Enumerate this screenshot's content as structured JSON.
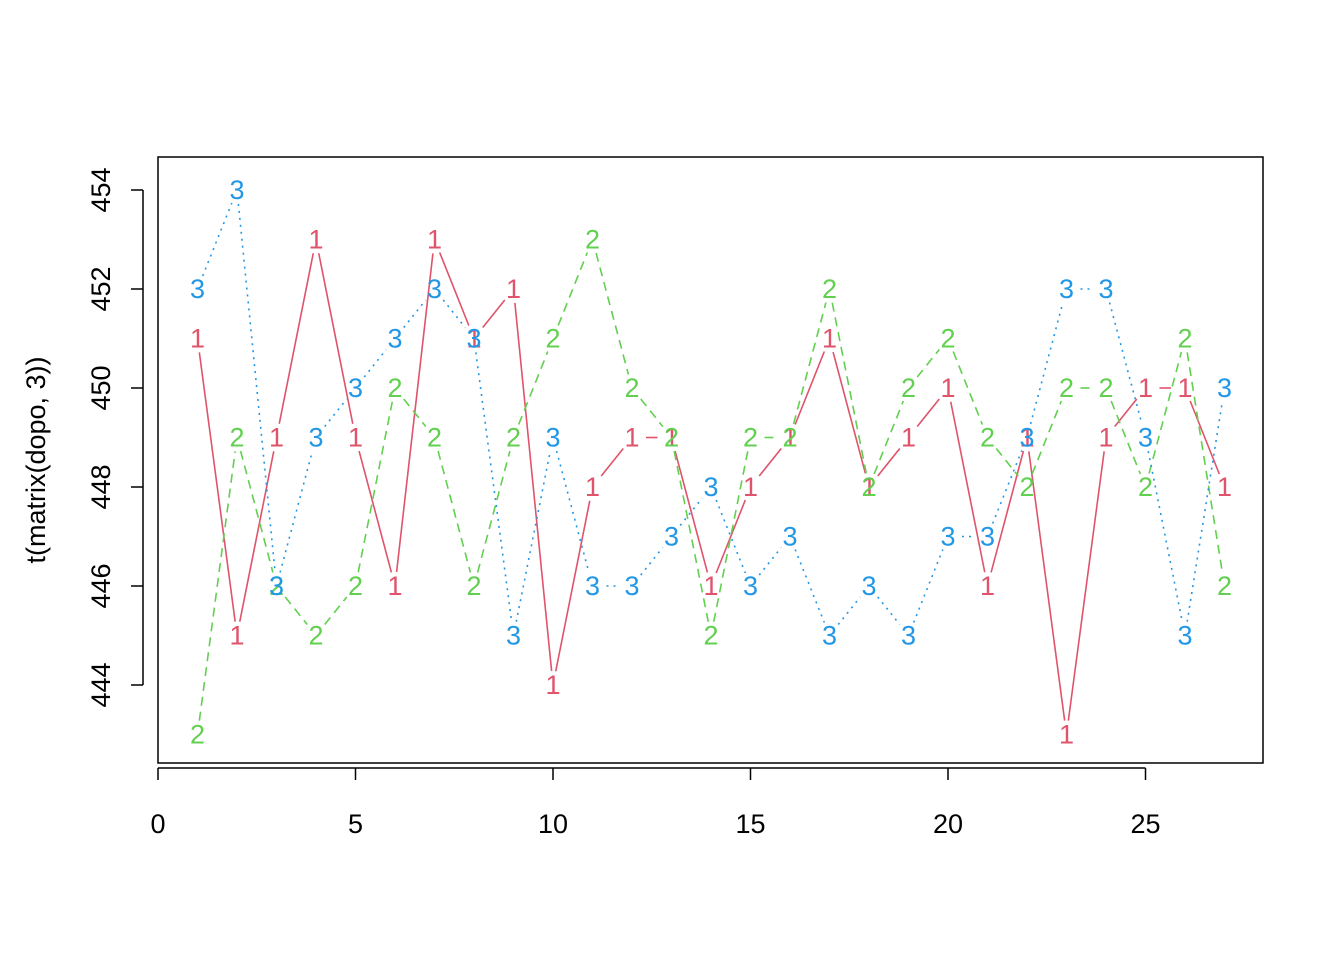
{
  "chart_data": {
    "type": "line",
    "title": "",
    "xlabel": "",
    "ylabel": "t(matrix(dopo, 3))",
    "xlim": [
      0,
      27
    ],
    "ylim": [
      443,
      454
    ],
    "x_ticks": [
      0,
      5,
      10,
      15,
      20,
      25
    ],
    "y_ticks": [
      444,
      446,
      448,
      450,
      452,
      454
    ],
    "grid": false,
    "legend": "none",
    "x": [
      1,
      2,
      3,
      4,
      5,
      6,
      7,
      8,
      9,
      10,
      11,
      12,
      13,
      14,
      15,
      16,
      17,
      18,
      19,
      20,
      21,
      22,
      23,
      24,
      25,
      26,
      27
    ],
    "series": [
      {
        "symbol": "1",
        "color": "#DF536B",
        "dash": "solid",
        "values": [
          451,
          445,
          449,
          453,
          449,
          446,
          453,
          451,
          452,
          444,
          448,
          449,
          449,
          446,
          448,
          449,
          451,
          448,
          449,
          450,
          446,
          449,
          443,
          449,
          450,
          450,
          448
        ]
      },
      {
        "symbol": "2",
        "color": "#61D04F",
        "dash": "dashed",
        "values": [
          443,
          449,
          446,
          445,
          446,
          450,
          449,
          446,
          449,
          451,
          453,
          450,
          449,
          445,
          449,
          449,
          452,
          448,
          450,
          451,
          449,
          448,
          450,
          450,
          448,
          451,
          446
        ]
      },
      {
        "symbol": "3",
        "color": "#2297E6",
        "dash": "dotted",
        "values": [
          452,
          454,
          446,
          449,
          450,
          451,
          452,
          451,
          445,
          449,
          446,
          446,
          447,
          448,
          446,
          447,
          445,
          446,
          445,
          447,
          447,
          449,
          452,
          452,
          449,
          445,
          450
        ]
      }
    ]
  }
}
